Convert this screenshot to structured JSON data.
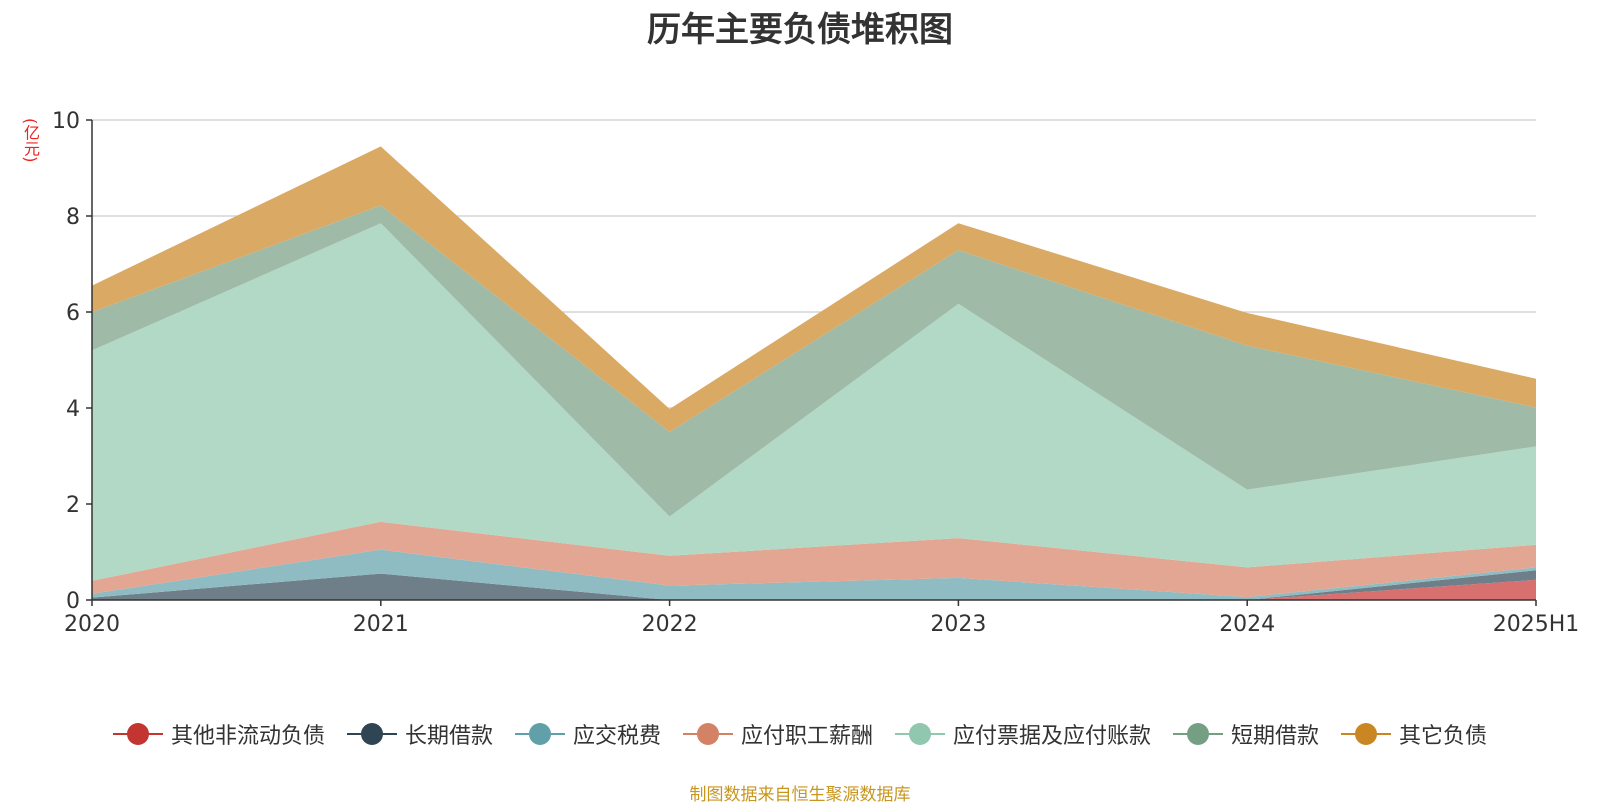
{
  "chart_data": {
    "type": "area",
    "title": "历年主要负债堆积图",
    "ylabel": "(亿元)",
    "source": "制图数据来自恒生聚源数据库",
    "x": [
      "2020",
      "2021",
      "2022",
      "2023",
      "2024",
      "2025H1"
    ],
    "ylim": [
      0,
      10
    ],
    "yticks": [
      0,
      2,
      4,
      6,
      8,
      10
    ],
    "stacked": true,
    "grid": true,
    "legend_position": "bottom",
    "series": [
      {
        "name": "其他非流动负债",
        "color": "#c23531",
        "fill": "#d87070",
        "values": [
          0,
          0,
          0,
          0,
          0,
          0.42
        ]
      },
      {
        "name": "长期借款",
        "color": "#2f4554",
        "fill": "#6e7f8a",
        "values": [
          0.05,
          0.55,
          0,
          0,
          0,
          0.2
        ]
      },
      {
        "name": "应交税费",
        "color": "#61a0a8",
        "fill": "#8fbcc2",
        "values": [
          0.08,
          0.5,
          0.3,
          0.46,
          0.06,
          0.06
        ]
      },
      {
        "name": "应付职工薪酬",
        "color": "#d48265",
        "fill": "#e2a692",
        "values": [
          0.27,
          0.58,
          0.62,
          0.83,
          0.62,
          0.47
        ]
      },
      {
        "name": "应付票据及应付账款",
        "color": "#91c7ae",
        "fill": "#b2d8c6",
        "values": [
          4.8,
          6.22,
          0.82,
          4.88,
          1.62,
          2.05
        ]
      },
      {
        "name": "短期借款",
        "color": "#749f83",
        "fill": "#9fbaa7",
        "values": [
          0.8,
          0.37,
          1.76,
          1.12,
          3.0,
          0.81
        ]
      },
      {
        "name": "其它负债",
        "color": "#ca8622",
        "fill": "#daa963",
        "values": [
          0.55,
          1.23,
          0.48,
          0.56,
          0.68,
          0.6
        ]
      }
    ]
  }
}
